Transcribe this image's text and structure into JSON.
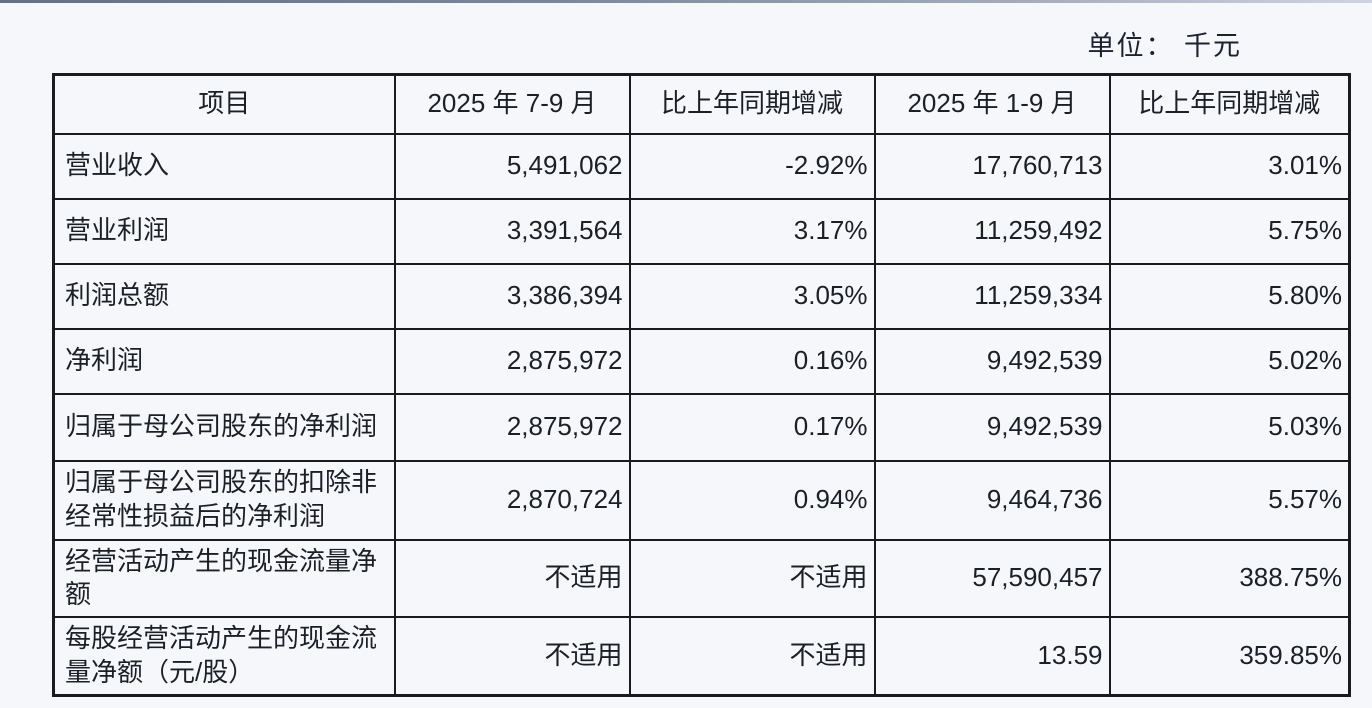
{
  "page": {
    "unit_label": "单位： 千元"
  },
  "colors": {
    "background": "#f6f7fa",
    "text": "#1b1f26",
    "border": "#181b20",
    "top_line": "#39415c"
  },
  "table": {
    "columns": [
      "项目",
      "2025 年 7-9 月",
      "比上年同期增减",
      "2025 年 1-9 月",
      "比上年同期增减"
    ],
    "rows": [
      {
        "item": "营业收入",
        "cur_period": "5,491,062",
        "cur_change": "-2.92%",
        "ytd": "17,760,713",
        "ytd_change": "3.01%"
      },
      {
        "item": "营业利润",
        "cur_period": "3,391,564",
        "cur_change": "3.17%",
        "ytd": "11,259,492",
        "ytd_change": "5.75%"
      },
      {
        "item": "利润总额",
        "cur_period": "3,386,394",
        "cur_change": "3.05%",
        "ytd": "11,259,334",
        "ytd_change": "5.80%"
      },
      {
        "item": "净利润",
        "cur_period": "2,875,972",
        "cur_change": "0.16%",
        "ytd": "9,492,539",
        "ytd_change": "5.02%"
      },
      {
        "item": "归属于母公司股东的净利润",
        "cur_period": "2,875,972",
        "cur_change": "0.17%",
        "ytd": "9,492,539",
        "ytd_change": "5.03%"
      },
      {
        "item": "归属于母公司股东的扣除非经常性损益后的净利润",
        "cur_period": "2,870,724",
        "cur_change": "0.94%",
        "ytd": "9,464,736",
        "ytd_change": "5.57%"
      },
      {
        "item": "经营活动产生的现金流量净额",
        "cur_period": "不适用",
        "cur_change": "不适用",
        "ytd": "57,590,457",
        "ytd_change": "388.75%"
      },
      {
        "item": "每股经营活动产生的现金流量净额（元/股）",
        "cur_period": "不适用",
        "cur_change": "不适用",
        "ytd": "13.59",
        "ytd_change": "359.85%"
      }
    ]
  }
}
